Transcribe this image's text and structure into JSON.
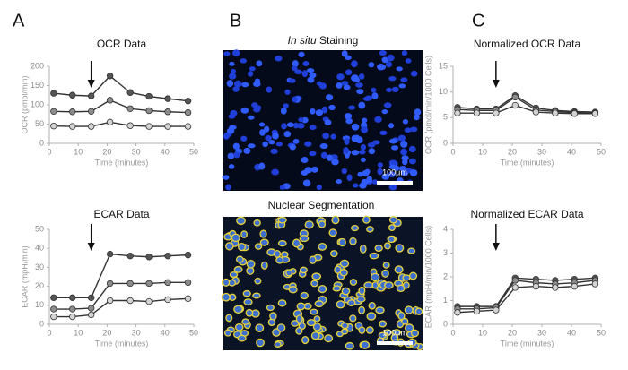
{
  "panel_labels": [
    "A",
    "B",
    "C"
  ],
  "images": {
    "top_title_italic": "In situ",
    "top_title": "Staining",
    "bottom_title": "Nuclear Segmentation",
    "scale_bar": "100μm"
  },
  "chart_data": [
    {
      "type": "line",
      "title": "OCR Data",
      "x_label": "Time (minutes)",
      "y_label": "OCR (pmol/min)",
      "x": [
        1.5,
        8,
        14.5,
        21,
        28,
        34.5,
        41,
        48
      ],
      "xlim": [
        0,
        50
      ],
      "xticks": [
        0,
        10,
        20,
        30,
        40,
        50
      ],
      "ylim": [
        0,
        200
      ],
      "yticks": [
        0,
        50,
        100,
        150,
        200
      ],
      "arrow_x": 14.5,
      "series": [
        {
          "color": "#555555",
          "values": [
            130,
            125,
            123,
            175,
            132,
            122,
            116,
            110
          ]
        },
        {
          "color": "#8c8c8c",
          "values": [
            83,
            82,
            83,
            112,
            90,
            85,
            82,
            80
          ]
        },
        {
          "color": "#d4d4d4",
          "values": [
            45,
            44,
            44,
            55,
            46,
            44,
            44,
            44
          ]
        }
      ]
    },
    {
      "type": "line",
      "title": "ECAR Data",
      "x_label": "Time (minutes)",
      "y_label": "ECAR (mpH/min)",
      "x": [
        1.5,
        8,
        14.5,
        21,
        28,
        34.5,
        41,
        48
      ],
      "xlim": [
        0,
        50
      ],
      "xticks": [
        0,
        10,
        20,
        30,
        40,
        50
      ],
      "ylim": [
        0,
        50
      ],
      "yticks": [
        0,
        10,
        20,
        30,
        40,
        50
      ],
      "arrow_x": 14.5,
      "series": [
        {
          "color": "#555555",
          "values": [
            14,
            14,
            14,
            37,
            36,
            35.5,
            36,
            36.5
          ]
        },
        {
          "color": "#8c8c8c",
          "values": [
            8,
            8,
            8.5,
            21.5,
            21.5,
            21.5,
            22,
            22
          ]
        },
        {
          "color": "#d4d4d4",
          "values": [
            4,
            4,
            5,
            12.5,
            12.5,
            12,
            13,
            13.5
          ]
        }
      ]
    },
    {
      "type": "line",
      "title": "Normalized OCR Data",
      "x_label": "Time (minutes)",
      "y_label": "OCR (pmol/min/1000 Cells)",
      "x": [
        1.5,
        8,
        14.5,
        21,
        28,
        34.5,
        41,
        48
      ],
      "xlim": [
        0,
        50
      ],
      "xticks": [
        0,
        10,
        20,
        30,
        40,
        50
      ],
      "ylim": [
        0,
        15
      ],
      "yticks": [
        0,
        5,
        10,
        15
      ],
      "arrow_x": 14.5,
      "series": [
        {
          "color": "#555555",
          "values": [
            7,
            6.7,
            6.7,
            9.3,
            6.9,
            6.4,
            6.2,
            6.1
          ]
        },
        {
          "color": "#8c8c8c",
          "values": [
            6.6,
            6.4,
            6.4,
            9,
            6.5,
            6.2,
            6,
            5.9
          ]
        },
        {
          "color": "#d4d4d4",
          "values": [
            5.9,
            5.9,
            5.9,
            7.4,
            6.1,
            5.9,
            5.8,
            5.8
          ]
        }
      ]
    },
    {
      "type": "line",
      "title": "Normalized ECAR Data",
      "x_label": "Time (minutes)",
      "y_label": "ECAR (mpH/min/1000 Cells)",
      "x": [
        1.5,
        8,
        14.5,
        21,
        28,
        34.5,
        41,
        48
      ],
      "xlim": [
        0,
        50
      ],
      "xticks": [
        0,
        10,
        20,
        30,
        40,
        50
      ],
      "ylim": [
        0,
        4
      ],
      "yticks": [
        0,
        1,
        2,
        3,
        4
      ],
      "arrow_x": 14.5,
      "series": [
        {
          "color": "#555555",
          "values": [
            0.75,
            0.75,
            0.75,
            1.95,
            1.9,
            1.85,
            1.9,
            1.95
          ]
        },
        {
          "color": "#8c8c8c",
          "values": [
            0.65,
            0.65,
            0.7,
            1.85,
            1.75,
            1.7,
            1.75,
            1.85
          ]
        },
        {
          "color": "#d4d4d4",
          "values": [
            0.5,
            0.55,
            0.6,
            1.55,
            1.6,
            1.55,
            1.6,
            1.7
          ]
        }
      ]
    }
  ]
}
